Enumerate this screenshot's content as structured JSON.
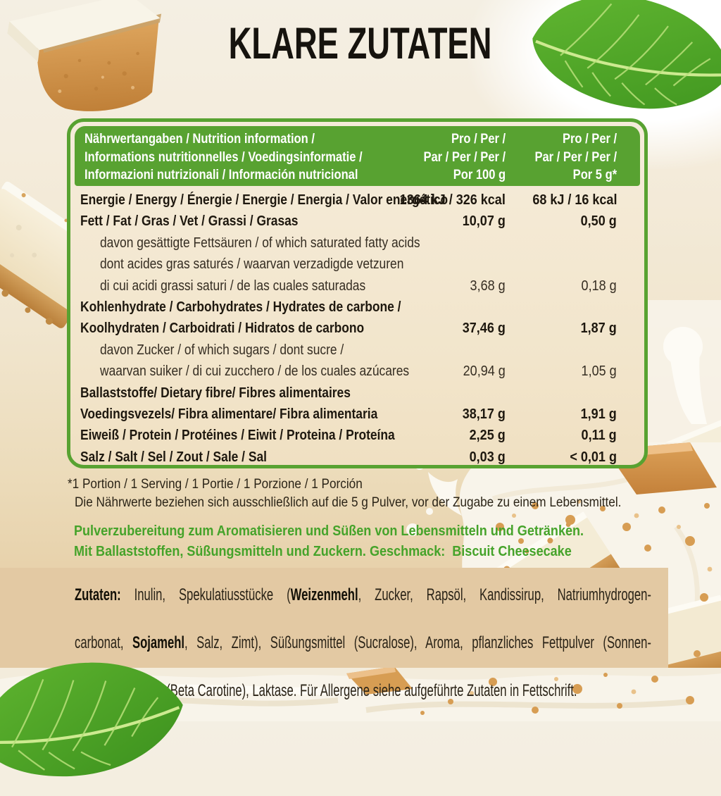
{
  "title": "KLARE ZUTATEN",
  "colors": {
    "green": "#58a231",
    "green_text": "#45a32a",
    "table_cream": "#f2e5cb",
    "page_tan": "#e2c7a0",
    "text_dark": "#1e180f"
  },
  "table": {
    "header": {
      "col1": "Nährwertangaben / Nutrition information /\nInformations nutritionnelles / Voedingsinformatie /\nInformazioni nutrizionali / Información nutricional",
      "col2": "Pro / Per /\nPar / Per / Per /\nPor 100 g",
      "col3": "Pro / Per /\nPar / Per / Per /\nPor 5 g*"
    },
    "rows": [
      {
        "label": "Energie / Energy / Énergie / Energie / Energia / Valor energético",
        "per100": "1364 kJ / 326 kcal",
        "per5": "68 kJ / 16 kcal",
        "bold": true,
        "indent": false
      },
      {
        "label": "Fett / Fat / Gras / Vet / Grassi / Grasas",
        "per100": "10,07 g",
        "per5": "0,50 g",
        "bold": true,
        "indent": false
      },
      {
        "label": "davon gesättigte Fettsäuren / of which saturated fatty acids",
        "per100": "",
        "per5": "",
        "bold": false,
        "indent": true
      },
      {
        "label": "dont acides gras saturés / waarvan verzadigde vetzuren",
        "per100": "",
        "per5": "",
        "bold": false,
        "indent": true
      },
      {
        "label": "di cui acidi grassi saturi / de las cuales saturadas",
        "per100": "3,68 g",
        "per5": "0,18 g",
        "bold": false,
        "indent": true
      },
      {
        "label": "Kohlenhydrate / Carbohydrates / Hydrates de carbone /",
        "per100": "",
        "per5": "",
        "bold": true,
        "indent": false
      },
      {
        "label": "Koolhydraten / Carboidrati / Hidratos de carbono",
        "per100": "37,46 g",
        "per5": "1,87 g",
        "bold": true,
        "indent": false
      },
      {
        "label": "davon Zucker / of which sugars / dont sucre /",
        "per100": "",
        "per5": "",
        "bold": false,
        "indent": true
      },
      {
        "label": "waarvan suiker / di cui zucchero / de los cuales azúcares",
        "per100": "20,94 g",
        "per5": "1,05 g",
        "bold": false,
        "indent": true
      },
      {
        "label": "Ballaststoffe/ Dietary fibre/ Fibres alimentaires",
        "per100": "",
        "per5": "",
        "bold": true,
        "indent": false
      },
      {
        "label": "Voedingsvezels/ Fibra alimentare/ Fibra alimentaria",
        "per100": "38,17 g",
        "per5": "1,91 g",
        "bold": true,
        "indent": false
      },
      {
        "label": "Eiweiß / Protein / Protéines / Eiwit / Proteina / Proteína",
        "per100": "2,25 g",
        "per5": "0,11 g",
        "bold": true,
        "indent": false
      },
      {
        "label": "Salz / Salt / Sel / Zout / Sale / Sal",
        "per100": "0,03 g",
        "per5": "< 0,01 g",
        "bold": true,
        "indent": false
      }
    ]
  },
  "footnotes": {
    "line1": "*1 Portion / 1 Serving / 1 Portie / 1 Porzione / 1 Porción",
    "line2": "Die Nährwerte beziehen sich ausschließlich auf die 5 g Pulver, vor der Zugabe zu einem Lebensmittel."
  },
  "green_note": {
    "line1": "Pulverzubereitung zum Aromatisieren und Süßen von Lebensmitteln und Getränken.",
    "line2": "Mit Ballaststoffen, Süßungsmitteln und Zuckern. Geschmack:  Biscuit Cheesecake"
  },
  "ingredients": {
    "lines": [
      [
        {
          "text": "Zutaten:",
          "bold": true
        },
        {
          "text": " Inulin, Spekulatiusstücke (",
          "bold": false
        },
        {
          "text": "Weizenmehl",
          "bold": true
        },
        {
          "text": ", Zucker, Rapsöl, Kandissirup, Natriumhydrogen-",
          "bold": false
        }
      ],
      [
        {
          "text": "carbonat, ",
          "bold": false
        },
        {
          "text": "Sojamehl",
          "bold": true
        },
        {
          "text": ", Salz, Zimt), Süßungsmittel (Sucralose), Aroma, pflanzliches Fettpulver (Sonnen-",
          "bold": false
        }
      ],
      [
        {
          "text": "blume), Farbstoff (Beta Carotine), Laktase. Für Allergene siehe aufgeführte Zutaten in Fettschrift.",
          "bold": false
        }
      ]
    ]
  },
  "decorations": [
    "cheesecake-chunk-image",
    "mint-leaf-top-image",
    "cheesecake-slice-image",
    "milk-drip-image",
    "milk-splash-image",
    "biscuit-crumbs-image",
    "milk-swirl-image",
    "mint-leaf-bottom-image"
  ]
}
